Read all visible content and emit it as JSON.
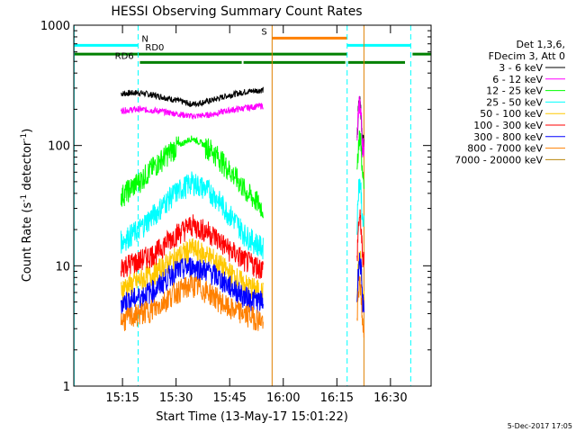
{
  "chart_data": {
    "type": "line",
    "title": "HESSI Observing Summary Count Rates",
    "xlabel": "Start Time (13-May-17 15:01:22)",
    "ylabel_main": "Count Rate (s",
    "ylabel_sup1": "-1",
    "ylabel_mid": " detector",
    "ylabel_sup2": "-1",
    "ylabel_end": ")",
    "y_scale": "log",
    "ylim": [
      1,
      1000
    ],
    "xlim_minutes": [
      0,
      100
    ],
    "x_ticks": [
      {
        "label": "15:15",
        "min": 13.63
      },
      {
        "label": "15:30",
        "min": 28.63
      },
      {
        "label": "15:45",
        "min": 43.63
      },
      {
        "label": "16:00",
        "min": 58.63
      },
      {
        "label": "16:15",
        "min": 73.63
      },
      {
        "label": "16:30",
        "min": 88.63
      }
    ],
    "y_ticks": [
      {
        "label": "1",
        "value": 1
      },
      {
        "label": "10",
        "value": 10
      },
      {
        "label": "100",
        "value": 100
      },
      {
        "label": "1000",
        "value": 1000
      }
    ],
    "legend_header": [
      "Det 1,3,6,",
      "FDecim 3, Att 0"
    ],
    "series": [
      {
        "name": "3 - 6 keV",
        "color": "#000000",
        "seg1": [
          270,
          275,
          260,
          240,
          220,
          235,
          260,
          280,
          290
        ],
        "seg2": [
          230
        ]
      },
      {
        "name": "6 - 12 keV",
        "color": "#ff00ff",
        "seg1": [
          195,
          200,
          195,
          185,
          175,
          180,
          195,
          205,
          215
        ],
        "seg2": [
          220
        ]
      },
      {
        "name": "12 - 25 keV",
        "color": "#00ff00",
        "seg1": [
          38,
          50,
          70,
          95,
          115,
          95,
          65,
          42,
          30
        ],
        "seg2": [
          120
        ]
      },
      {
        "name": "25 - 50 keV",
        "color": "#00ffff",
        "seg1": [
          16,
          20,
          28,
          40,
          50,
          42,
          28,
          18,
          14
        ],
        "seg2": [
          50
        ]
      },
      {
        "name": "50 - 100 keV",
        "color": "#ffc800",
        "seg1": [
          6.5,
          7.5,
          9,
          11.5,
          14,
          12,
          9,
          7,
          6
        ],
        "seg2": [
          12
        ]
      },
      {
        "name": "100 - 300 keV",
        "color": "#ff0000",
        "seg1": [
          10,
          11,
          13,
          18,
          22,
          19,
          14,
          11,
          9.5
        ],
        "seg2": [
          25
        ]
      },
      {
        "name": "300 - 800 keV",
        "color": "#0000ff",
        "seg1": [
          5,
          5.5,
          6.5,
          9,
          10,
          9,
          7,
          5.5,
          5
        ],
        "seg2": [
          11
        ]
      },
      {
        "name": "800 - 7000 keV",
        "color": "#ff8000",
        "seg1": [
          3.5,
          4,
          4.5,
          6,
          7,
          6,
          4.5,
          4,
          3.5
        ],
        "seg2": [
          7
        ]
      },
      {
        "name": "7000 - 20000 keV",
        "color": "#b8860b",
        "seg1": [],
        "seg2": []
      }
    ],
    "segment_ranges_minutes": {
      "seg1": [
        13.2,
        53.0
      ],
      "seg2": [
        79.3,
        81.2
      ]
    },
    "vlines": [
      {
        "name": "cyan-dash-1",
        "color": "#00ffff",
        "min": 18.0,
        "dashed": true
      },
      {
        "name": "orange-saa",
        "color": "#e08000",
        "min": 55.5,
        "dashed": false
      },
      {
        "name": "cyan-dash-2",
        "color": "#00ffff",
        "min": 76.5,
        "dashed": true
      },
      {
        "name": "orange-2",
        "color": "#e08000",
        "min": 81.2,
        "dashed": false
      },
      {
        "name": "cyan-dash-3",
        "color": "#00ffff",
        "min": 94.3,
        "dashed": true
      },
      {
        "name": "cyan-left",
        "color": "#00ffff",
        "min": 0.1,
        "dashed": false
      }
    ],
    "flags": [
      {
        "name": "night",
        "label": "N",
        "color": "#00ffff",
        "label_min": 19.0,
        "spans": [
          [
            0,
            18.0
          ],
          [
            76.5,
            94.3
          ]
        ],
        "value": 680
      },
      {
        "name": "saa",
        "label": "S",
        "color": "#ff8000",
        "label_min": 52.5,
        "spans": [
          [
            55.5,
            76.5
          ]
        ],
        "value": 780
      },
      {
        "name": "rd0",
        "label": "RD0",
        "color": "#008000",
        "label_min": 20.0,
        "spans": [
          [
            0,
            76.5
          ],
          [
            94.8,
            100
          ]
        ],
        "value": 575
      },
      {
        "name": "rd6",
        "label": "RD6",
        "color": "#008000",
        "label_min": 11.5,
        "spans": [
          [
            18.5,
            47.0
          ],
          [
            47.5,
            76.0
          ],
          [
            76.8,
            92.7
          ]
        ],
        "value": 490
      }
    ],
    "grid": false,
    "legend_position": "right"
  },
  "footer": {
    "date": "5-Dec-2017 17:05"
  }
}
